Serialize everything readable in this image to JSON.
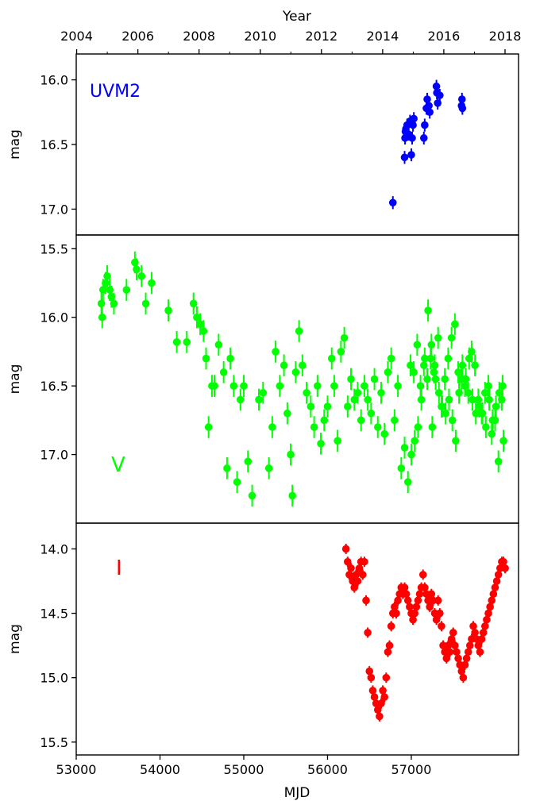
{
  "figure": {
    "top_axis_label": "Year",
    "bottom_axis_label": "MJD"
  },
  "chart_data": [
    {
      "type": "scatter",
      "band": "UVM2",
      "band_label": "UVM2",
      "color": "#0000ff",
      "ylabel": "mag",
      "y_inverted": true,
      "ylim": [
        17.2,
        15.8
      ],
      "yticks": [
        16.0,
        16.5,
        17.0
      ],
      "ytick_labels": [
        "16.0",
        "16.5",
        "17.0"
      ],
      "x": [
        56780,
        56920,
        56925,
        56930,
        56935,
        56950,
        56965,
        56985,
        57000,
        57010,
        57020,
        57030,
        57150,
        57160,
        57180,
        57190,
        57210,
        57220,
        57300,
        57305,
        57315,
        57340,
        57600,
        57605,
        57610
      ],
      "y": [
        16.95,
        16.6,
        16.45,
        16.4,
        16.38,
        16.35,
        16.42,
        16.32,
        16.58,
        16.45,
        16.35,
        16.3,
        16.45,
        16.35,
        16.22,
        16.15,
        16.2,
        16.25,
        16.05,
        16.1,
        16.18,
        16.12,
        16.2,
        16.15,
        16.22
      ],
      "yerr": 0.05
    },
    {
      "type": "scatter",
      "band": "V",
      "band_label": "V",
      "color": "#00ff00",
      "ylabel": "mag",
      "y_inverted": true,
      "ylim": [
        17.5,
        15.4
      ],
      "yticks": [
        15.5,
        16.0,
        16.5,
        17.0
      ],
      "ytick_labels": [
        "15.5",
        "16.0",
        "16.5",
        "17.0"
      ],
      "x": [
        53300,
        53310,
        53320,
        53350,
        53370,
        53400,
        53420,
        53450,
        53600,
        53700,
        53720,
        53780,
        53830,
        53900,
        54100,
        54200,
        54320,
        54400,
        54440,
        54480,
        54520,
        54550,
        54580,
        54620,
        54650,
        54700,
        54760,
        54800,
        54840,
        54880,
        54920,
        54960,
        55000,
        55050,
        55100,
        55180,
        55230,
        55300,
        55340,
        55380,
        55430,
        55480,
        55520,
        55560,
        55580,
        55620,
        55660,
        55700,
        55750,
        55800,
        55840,
        55880,
        55920,
        55960,
        56000,
        56050,
        56080,
        56120,
        56160,
        56200,
        56240,
        56280,
        56320,
        56360,
        56400,
        56440,
        56480,
        56520,
        56560,
        56600,
        56640,
        56680,
        56720,
        56760,
        56800,
        56840,
        56880,
        56920,
        56960,
        57000,
        57040,
        57080,
        57120,
        57160,
        57200,
        57240,
        57280,
        57320,
        57360,
        57400,
        57440,
        57480,
        57520,
        57560,
        57600,
        57640,
        57680,
        57720,
        57760,
        57800,
        57840,
        57880,
        57920,
        57960,
        58000,
        58040,
        58080,
        58100,
        57250,
        57290,
        57330,
        57370,
        57410,
        57450,
        57490,
        57530,
        57570,
        57610,
        57650,
        57690,
        57730,
        57770,
        57810,
        57850,
        57890,
        57930,
        57970,
        58010,
        58050,
        58090,
        56990,
        57030,
        57070,
        57110,
        57150,
        57190,
        57230,
        57270
      ],
      "y": [
        15.9,
        16.0,
        15.8,
        15.75,
        15.7,
        15.8,
        15.85,
        15.9,
        15.8,
        15.6,
        15.65,
        15.7,
        15.9,
        15.75,
        15.95,
        16.18,
        16.18,
        15.9,
        16.0,
        16.05,
        16.1,
        16.3,
        16.8,
        16.5,
        16.5,
        16.2,
        16.4,
        17.1,
        16.3,
        16.5,
        17.2,
        16.6,
        16.5,
        17.05,
        17.3,
        16.6,
        16.55,
        17.1,
        16.8,
        16.25,
        16.5,
        16.35,
        16.7,
        17.0,
        17.3,
        16.4,
        16.1,
        16.35,
        16.55,
        16.65,
        16.8,
        16.5,
        16.92,
        16.75,
        16.65,
        16.3,
        16.5,
        16.9,
        16.25,
        16.15,
        16.65,
        16.45,
        16.6,
        16.55,
        16.75,
        16.5,
        16.6,
        16.7,
        16.45,
        16.8,
        16.55,
        16.85,
        16.4,
        16.3,
        16.75,
        16.5,
        17.1,
        16.95,
        17.2,
        17.0,
        16.9,
        16.8,
        16.6,
        16.3,
        15.95,
        16.2,
        16.35,
        16.15,
        16.65,
        16.45,
        16.3,
        16.15,
        16.05,
        16.4,
        16.45,
        16.5,
        16.55,
        16.25,
        16.35,
        16.6,
        16.7,
        16.55,
        16.5,
        16.85,
        16.75,
        17.05,
        16.6,
        16.9,
        16.8,
        16.45,
        16.55,
        16.65,
        16.7,
        16.6,
        16.75,
        16.9,
        16.55,
        16.35,
        16.45,
        16.3,
        16.6,
        16.7,
        16.65,
        16.7,
        16.8,
        16.6,
        16.75,
        16.65,
        16.55,
        16.5,
        16.35,
        16.4,
        16.2,
        16.5,
        16.35,
        16.45,
        16.3,
        16.4
      ],
      "yerr": 0.08
    },
    {
      "type": "scatter",
      "band": "I",
      "band_label": "I",
      "color": "#ff0000",
      "ylabel": "mag",
      "y_inverted": true,
      "ylim": [
        15.6,
        13.8
      ],
      "yticks": [
        14.0,
        14.5,
        15.0,
        15.5
      ],
      "ytick_labels": [
        "14.0",
        "14.5",
        "15.0",
        "15.5"
      ],
      "x": [
        56220,
        56240,
        56260,
        56280,
        56300,
        56320,
        56340,
        56360,
        56380,
        56400,
        56420,
        56440,
        56460,
        56480,
        56500,
        56520,
        56540,
        56560,
        56580,
        56600,
        56620,
        56640,
        56660,
        56680,
        56700,
        56720,
        56740,
        56760,
        56780,
        56800,
        56820,
        56840,
        56860,
        56880,
        56900,
        56920,
        56940,
        56960,
        56980,
        57000,
        57020,
        57040,
        57060,
        57080,
        57100,
        57120,
        57140,
        57160,
        57180,
        57200,
        57220,
        57240,
        57260,
        57280,
        57300,
        57320,
        57340,
        57360,
        57380,
        57400,
        57420,
        57440,
        57460,
        57480,
        57500,
        57520,
        57540,
        57560,
        57580,
        57600,
        57620,
        57640,
        57660,
        57680,
        57700,
        57720,
        57740,
        57760,
        57780,
        57800,
        57820,
        57840,
        57860,
        57880,
        57900,
        57920,
        57940,
        57960,
        57980,
        58000,
        58020,
        58040,
        58060,
        58080,
        58100,
        58120
      ],
      "y": [
        14.0,
        14.1,
        14.2,
        14.15,
        14.25,
        14.3,
        14.2,
        14.25,
        14.15,
        14.1,
        14.2,
        14.1,
        14.4,
        14.65,
        14.95,
        15.0,
        15.1,
        15.15,
        15.2,
        15.25,
        15.3,
        15.2,
        15.1,
        15.15,
        15.0,
        14.8,
        14.75,
        14.6,
        14.5,
        14.45,
        14.5,
        14.4,
        14.35,
        14.3,
        14.35,
        14.3,
        14.35,
        14.4,
        14.45,
        14.5,
        14.55,
        14.5,
        14.45,
        14.4,
        14.35,
        14.3,
        14.2,
        14.3,
        14.35,
        14.4,
        14.45,
        14.35,
        14.4,
        14.5,
        14.55,
        14.4,
        14.5,
        14.6,
        14.75,
        14.8,
        14.85,
        14.75,
        14.8,
        14.7,
        14.65,
        14.75,
        14.8,
        14.85,
        14.9,
        14.95,
        15.0,
        14.9,
        14.85,
        14.8,
        14.75,
        14.7,
        14.6,
        14.65,
        14.7,
        14.75,
        14.8,
        14.7,
        14.65,
        14.6,
        14.55,
        14.5,
        14.45,
        14.4,
        14.35,
        14.3,
        14.25,
        14.2,
        14.15,
        14.1,
        14.1,
        14.15
      ],
      "yerr": 0.04
    }
  ],
  "x_axis": {
    "type": "linear",
    "label": "MJD",
    "xlim": [
      53000,
      58280
    ],
    "ticks": [
      53000,
      54000,
      55000,
      56000,
      57000
    ],
    "tick_labels": [
      "53000",
      "54000",
      "55000",
      "56000",
      "57000"
    ]
  },
  "top_axis": {
    "label": "Year",
    "ticks": [
      53005,
      53736,
      54466,
      55197,
      55927,
      56658,
      57388,
      58119
    ],
    "tick_labels": [
      "2004",
      "2006",
      "2008",
      "2010",
      "2012",
      "2014",
      "2016",
      "2018"
    ]
  }
}
